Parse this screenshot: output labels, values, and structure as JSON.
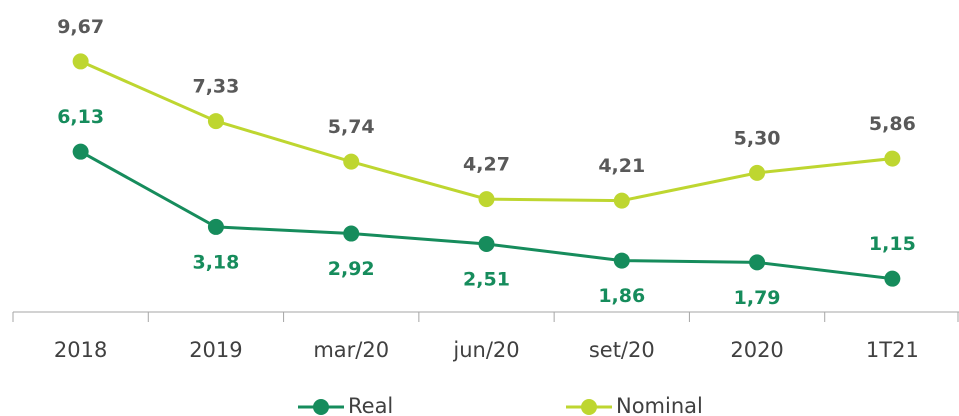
{
  "chart_data": {
    "type": "line",
    "categories": [
      "2018",
      "2019",
      "mar/20",
      "jun/20",
      "set/20",
      "2020",
      "1T21"
    ],
    "series": [
      {
        "name": "Real",
        "color": "#168c5c",
        "label_color": "#168c5c",
        "values": [
          6.13,
          3.18,
          2.92,
          2.51,
          1.86,
          1.79,
          1.15
        ],
        "value_labels": [
          "6,13",
          "3,18",
          "2,92",
          "2,51",
          "1,86",
          "1,79",
          "1,15"
        ]
      },
      {
        "name": "Nominal",
        "color": "#bed630",
        "label_color": "#595959",
        "values": [
          9.67,
          7.33,
          5.74,
          4.27,
          4.21,
          5.3,
          5.86
        ],
        "value_labels": [
          "9,67",
          "7,33",
          "5,74",
          "4,27",
          "4,21",
          "5,30",
          "5,86"
        ]
      }
    ],
    "ylim": [
      0,
      12
    ],
    "legend": "bottom"
  }
}
